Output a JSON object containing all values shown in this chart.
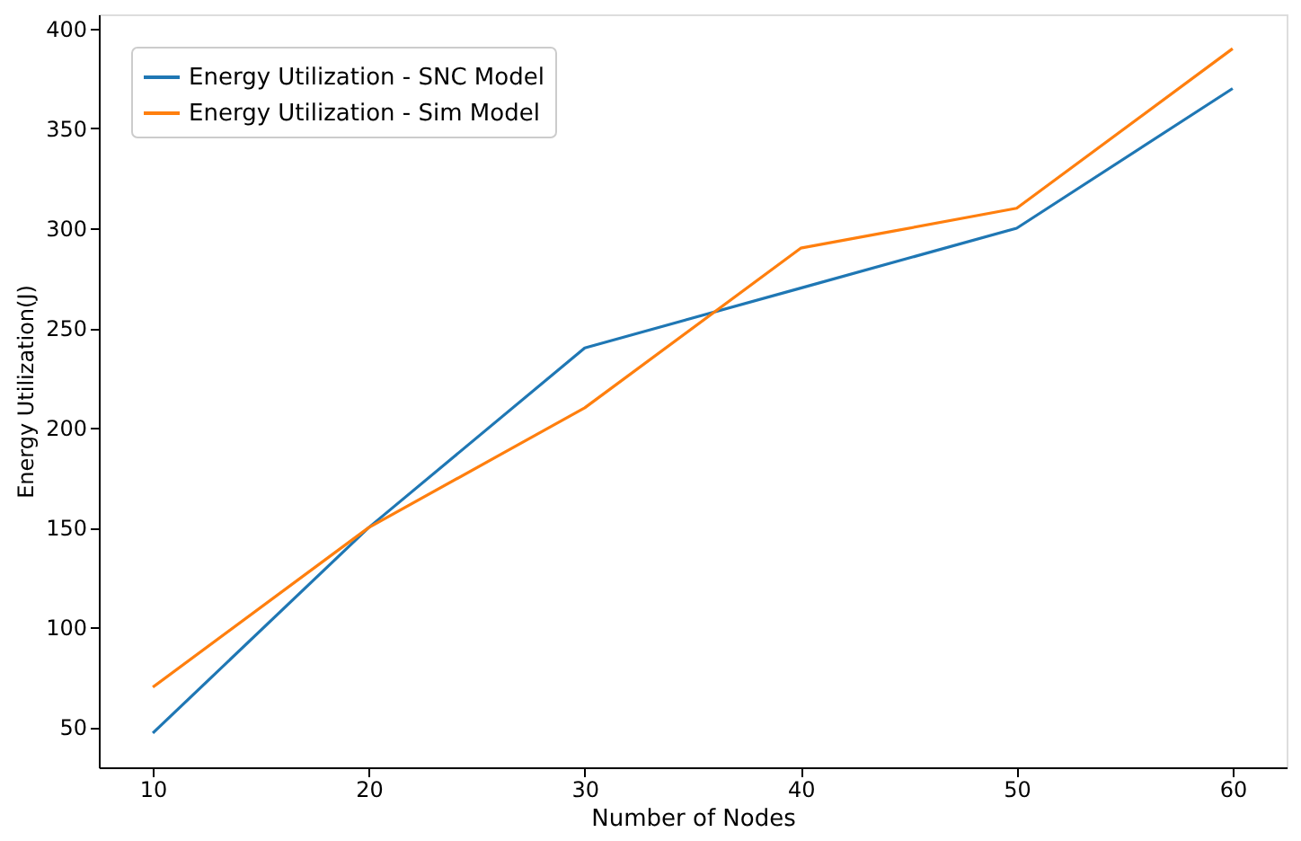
{
  "chart_data": {
    "type": "line",
    "xlabel": "Number of Nodes",
    "ylabel": "Energy Utilization(J)",
    "x": [
      10,
      20,
      30,
      40,
      50,
      60
    ],
    "series": [
      {
        "name": "Energy Utilization - SNC Model",
        "color": "#1f77b4",
        "values": [
          47,
          150,
          240,
          270,
          300,
          370
        ]
      },
      {
        "name": "Energy Utilization - Sim Model",
        "color": "#ff7f0e",
        "values": [
          70,
          150,
          210,
          290,
          310,
          390
        ]
      }
    ],
    "xlim": [
      7.5,
      62.5
    ],
    "xticks": [
      10,
      20,
      30,
      40,
      50,
      60
    ],
    "ylim": [
      29.85,
      407.15
    ],
    "yticks": [
      50,
      100,
      150,
      200,
      250,
      300,
      350,
      400
    ],
    "grid": false,
    "legend": "top left",
    "marker": "none",
    "line_style": "solid"
  }
}
